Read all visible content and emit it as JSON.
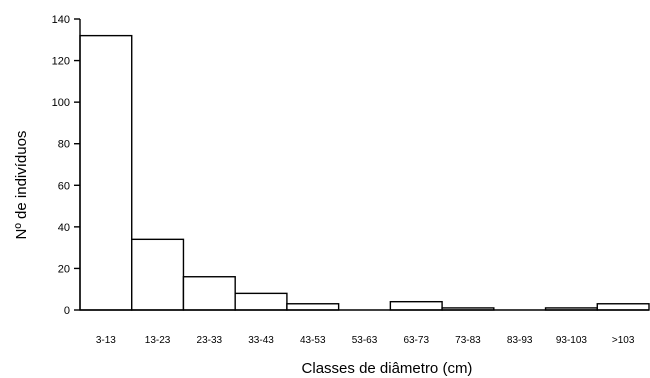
{
  "chart_data": {
    "type": "bar",
    "title": "",
    "xlabel": "Classes de diâmetro (cm)",
    "ylabel": "Nº de indivíduos",
    "categories": [
      "3-13",
      "13-23",
      "23-33",
      "33-43",
      "43-53",
      "53-63",
      "63-73",
      "73-83",
      "83-93",
      "93-103",
      ">103"
    ],
    "values": [
      132,
      34,
      16,
      8,
      3,
      0,
      4,
      1,
      0,
      1,
      3
    ],
    "ylim": [
      0,
      140
    ],
    "yticks": [
      "0",
      "20",
      "40",
      "60",
      "80",
      "100",
      "120",
      "140"
    ],
    "grid": false,
    "legend": "none",
    "colors": {
      "bar_fill": "#ffffff",
      "bar_stroke": "#000000"
    }
  }
}
